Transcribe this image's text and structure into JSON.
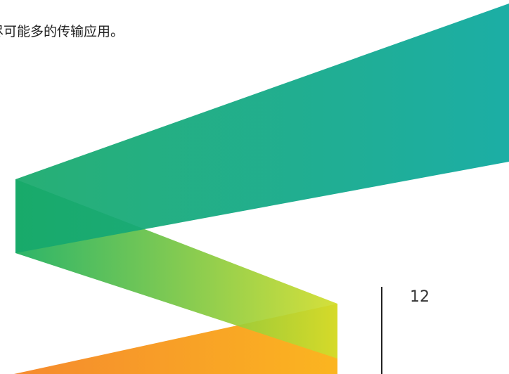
{
  "body": {
    "text": "尽可能多的传输应用。"
  },
  "footer": {
    "page_number": "12"
  }
}
